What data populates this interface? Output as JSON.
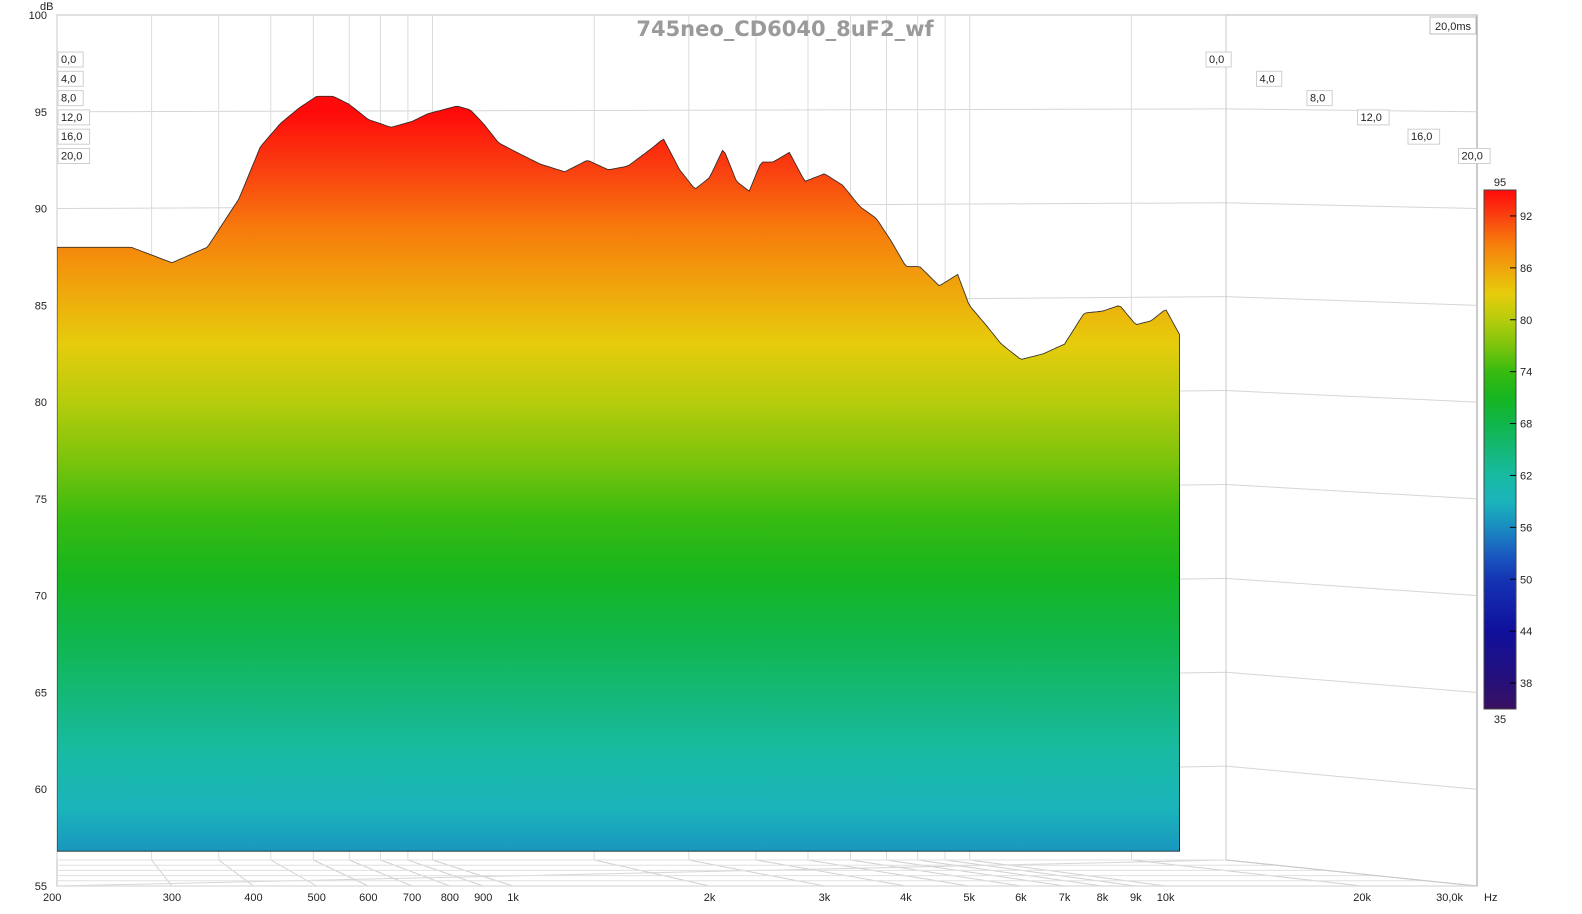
{
  "chart_data": {
    "type": "waterfall",
    "title": "745neo_CD6040_8uF2_wf",
    "ylabel": "dB",
    "xlabel_unit": "Hz",
    "xscale": "log",
    "xlim": [
      200,
      30000
    ],
    "ylim": [
      55,
      100
    ],
    "y_ticks": [
      55,
      60,
      65,
      70,
      75,
      80,
      85,
      90,
      95,
      100
    ],
    "x_ticks": [
      {
        "value": 200,
        "label": "200"
      },
      {
        "value": 300,
        "label": "300"
      },
      {
        "value": 400,
        "label": "400"
      },
      {
        "value": 500,
        "label": "500"
      },
      {
        "value": 600,
        "label": "600"
      },
      {
        "value": 700,
        "label": "700"
      },
      {
        "value": 800,
        "label": "800"
      },
      {
        "value": 900,
        "label": "900"
      },
      {
        "value": 1000,
        "label": "1k"
      },
      {
        "value": 2000,
        "label": "2k"
      },
      {
        "value": 3000,
        "label": "3k"
      },
      {
        "value": 4000,
        "label": "4k"
      },
      {
        "value": 5000,
        "label": "5k"
      },
      {
        "value": 6000,
        "label": "6k"
      },
      {
        "value": 7000,
        "label": "7k"
      },
      {
        "value": 8000,
        "label": "8k"
      },
      {
        "value": 9000,
        "label": "9k"
      },
      {
        "value": 10000,
        "label": "10k"
      },
      {
        "value": 20000,
        "label": "20k"
      },
      {
        "value": 30000,
        "label": "30,0k"
      }
    ],
    "time_label": "20,0ms",
    "time_ticks": [
      "0,0",
      "4,0",
      "8,0",
      "12,0",
      "16,0",
      "20,0"
    ],
    "colorbar": {
      "range": [
        35,
        95
      ],
      "top_label": "95",
      "bottom_label": "35",
      "ticks": [
        92,
        86,
        80,
        74,
        68,
        62,
        56,
        50,
        44,
        38
      ]
    },
    "front_slice": {
      "freq": [
        200,
        260,
        300,
        340,
        380,
        410,
        440,
        470,
        500,
        530,
        560,
        600,
        650,
        700,
        740,
        780,
        820,
        860,
        900,
        950,
        1000,
        1100,
        1200,
        1300,
        1400,
        1500,
        1600,
        1700,
        1800,
        1900,
        2000,
        2100,
        2200,
        2300,
        2400,
        2500,
        2650,
        2800,
        3000,
        3200,
        3400,
        3600,
        3800,
        4000,
        4200,
        4500,
        4800,
        5000,
        5300,
        5600,
        6000,
        6500,
        7000,
        7500,
        8000,
        8500,
        9000,
        9500,
        10000,
        10500
      ],
      "spl": [
        88.0,
        88.0,
        87.2,
        88.0,
        90.5,
        93.2,
        94.4,
        95.2,
        95.8,
        95.8,
        95.4,
        94.6,
        94.2,
        94.5,
        94.9,
        95.1,
        95.3,
        95.1,
        94.4,
        93.4,
        93.0,
        92.3,
        91.9,
        92.5,
        92.0,
        92.2,
        92.9,
        93.6,
        92.0,
        91.0,
        91.6,
        93.1,
        91.4,
        90.9,
        92.4,
        92.4,
        92.9,
        91.4,
        91.8,
        91.2,
        90.1,
        89.5,
        88.3,
        87.0,
        87.0,
        86.0,
        86.6,
        85.0,
        84.0,
        83.0,
        82.2,
        82.5,
        83.0,
        84.6,
        84.7,
        85.0,
        84.0,
        84.2,
        84.8,
        83.5
      ]
    },
    "last_slice_spl": 57.3,
    "slices": 60,
    "decay_ms": 20.0
  }
}
